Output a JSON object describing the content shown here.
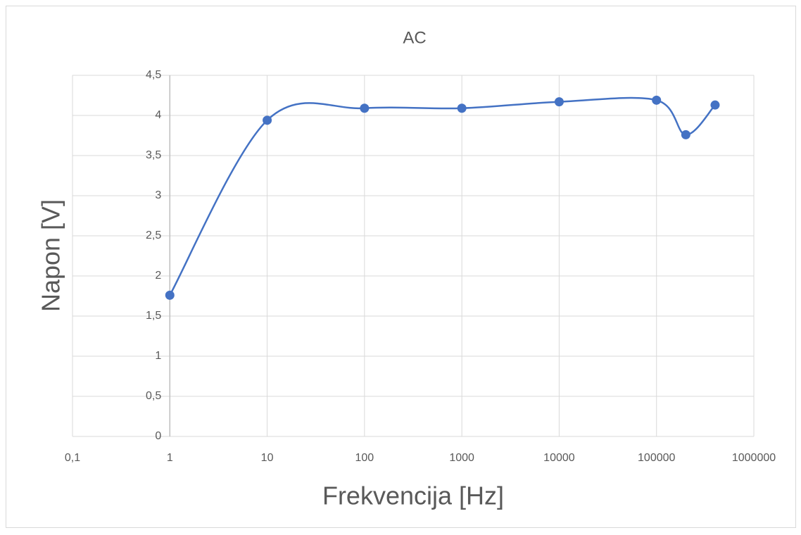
{
  "chart_data": {
    "type": "scatter",
    "title": "AC",
    "x_label": "Frekvencija [Hz]",
    "y_label": "Napon [V]",
    "x_scale": "log",
    "smooth": true,
    "grid": true,
    "y_axis_crosses": 1,
    "series": [
      {
        "name": "Napon",
        "color": "#4472c4",
        "x": [
          1,
          10,
          100,
          1000,
          10000,
          100000,
          200000,
          400000
        ],
        "values": [
          1.76,
          3.94,
          4.09,
          4.09,
          4.17,
          4.19,
          3.76,
          4.13
        ]
      }
    ],
    "xlim": [
      0.1,
      1000000
    ],
    "xticks": [
      {
        "value": 0.1,
        "label": "0,1"
      },
      1,
      10,
      100,
      1000,
      10000,
      100000,
      1000000
    ],
    "ylim": [
      0,
      4.5
    ],
    "yticks": [
      0,
      {
        "value": 0.5,
        "label": "0,5"
      },
      1,
      {
        "value": 1.5,
        "label": "1,5"
      },
      2,
      {
        "value": 2.5,
        "label": "2,5"
      },
      3,
      {
        "value": 3.5,
        "label": "3,5"
      },
      4,
      {
        "value": 4.5,
        "label": "4,5"
      }
    ]
  }
}
